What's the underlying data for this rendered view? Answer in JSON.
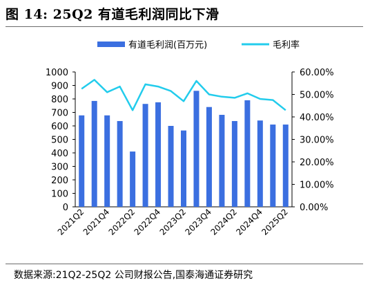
{
  "page": {
    "title": "图 14:  25Q2 有道毛利润同比下滑",
    "source": "数据来源:21Q2-25Q2 公司财报公告,国泰海通证券研究"
  },
  "chart_data": {
    "type": "bar",
    "title": "",
    "categories": [
      "2021Q2",
      "2021Q3",
      "2021Q4",
      "2022Q1",
      "2022Q2",
      "2022Q3",
      "2022Q4",
      "2023Q1",
      "2023Q2",
      "2023Q3",
      "2023Q4",
      "2024Q1",
      "2024Q2",
      "2024Q3",
      "2024Q4",
      "2025Q1",
      "2025Q2"
    ],
    "x_tick_labels": [
      "2021Q2",
      "",
      "2021Q4",
      "",
      "2022Q2",
      "",
      "2022Q4",
      "",
      "2023Q2",
      "",
      "2023Q4",
      "",
      "2024Q2",
      "",
      "2024Q4",
      "",
      "2025Q2"
    ],
    "series": [
      {
        "name": "有道毛利润(百万元)",
        "type": "bar",
        "axis": "left",
        "color": "#3b6fe0",
        "values": [
          678,
          785,
          678,
          636,
          410,
          763,
          775,
          600,
          566,
          860,
          740,
          682,
          636,
          790,
          640,
          610,
          610
        ]
      },
      {
        "name": "毛利率",
        "type": "line",
        "axis": "right",
        "color": "#22ccec",
        "values": [
          52.5,
          56.5,
          51.0,
          53.5,
          43.0,
          54.5,
          53.5,
          51.5,
          47.0,
          56.0,
          50.0,
          49.0,
          48.5,
          50.5,
          48.0,
          47.5,
          43.0
        ]
      }
    ],
    "y_left": {
      "min": 0,
      "max": 1000,
      "step": 100,
      "tick_labels": [
        "0",
        "100",
        "200",
        "300",
        "400",
        "500",
        "600",
        "700",
        "800",
        "900",
        "1000"
      ]
    },
    "y_right": {
      "min": 0,
      "max": 60,
      "step": 10,
      "unit": "%",
      "tick_labels": [
        "0.00%",
        "10.00%",
        "20.00%",
        "30.00%",
        "40.00%",
        "50.00%",
        "60.00%"
      ]
    },
    "grid": false,
    "legend_position": "top"
  }
}
